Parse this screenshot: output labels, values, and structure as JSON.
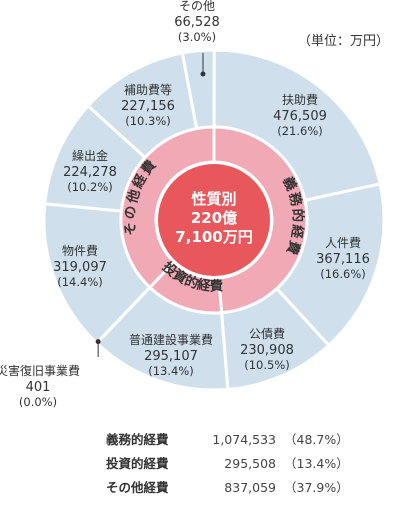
{
  "unit_label": "（単位：万円）",
  "chart_data": {
    "type": "pie",
    "center": [
      "性質別",
      "220億",
      "7,100万円"
    ],
    "slices": [
      {
        "name": "扶助費",
        "value": "476,509",
        "pct": "(21.6%)",
        "percent": 21.6
      },
      {
        "name": "人件費",
        "value": "367,116",
        "pct": "(16.6%)",
        "percent": 16.6
      },
      {
        "name": "公債費",
        "value": "230,908",
        "pct": "(10.5%)",
        "percent": 10.5
      },
      {
        "name": "普通建設事業費",
        "value": "295,107",
        "pct": "(13.4%)",
        "percent": 13.4
      },
      {
        "name": "災害復旧事業費",
        "value": "401",
        "pct": "(0.0%)",
        "percent": 0.02
      },
      {
        "name": "物件費",
        "value": "319,097",
        "pct": "(14.4%)",
        "percent": 14.4
      },
      {
        "name": "繰出金",
        "value": "224,278",
        "pct": "(10.2%)",
        "percent": 10.2
      },
      {
        "name": "補助費等",
        "value": "227,156",
        "pct": "(10.3%)",
        "percent": 10.3
      },
      {
        "name": "その他",
        "value": "66,528",
        "pct": "(3.0%)",
        "percent": 3.0
      }
    ],
    "groups": [
      {
        "name": "義務的経費",
        "percent": 48.7
      },
      {
        "name": "投資的経費",
        "percent": 13.4
      },
      {
        "name": "その他経費",
        "percent": 37.9
      }
    ],
    "colors": {
      "outer": "#cfe0ec",
      "middle": "#f2a9b6",
      "center": "#e8575c",
      "stroke": "#ffffff",
      "text": "#333333"
    }
  },
  "summary": [
    {
      "label": "義務的経費",
      "value": "1,074,533",
      "pct": "（48.7%）"
    },
    {
      "label": "投資的経費",
      "value": "295,508",
      "pct": "（13.4%）"
    },
    {
      "label": "その他経費",
      "value": "837,059",
      "pct": "（37.9%）"
    }
  ]
}
